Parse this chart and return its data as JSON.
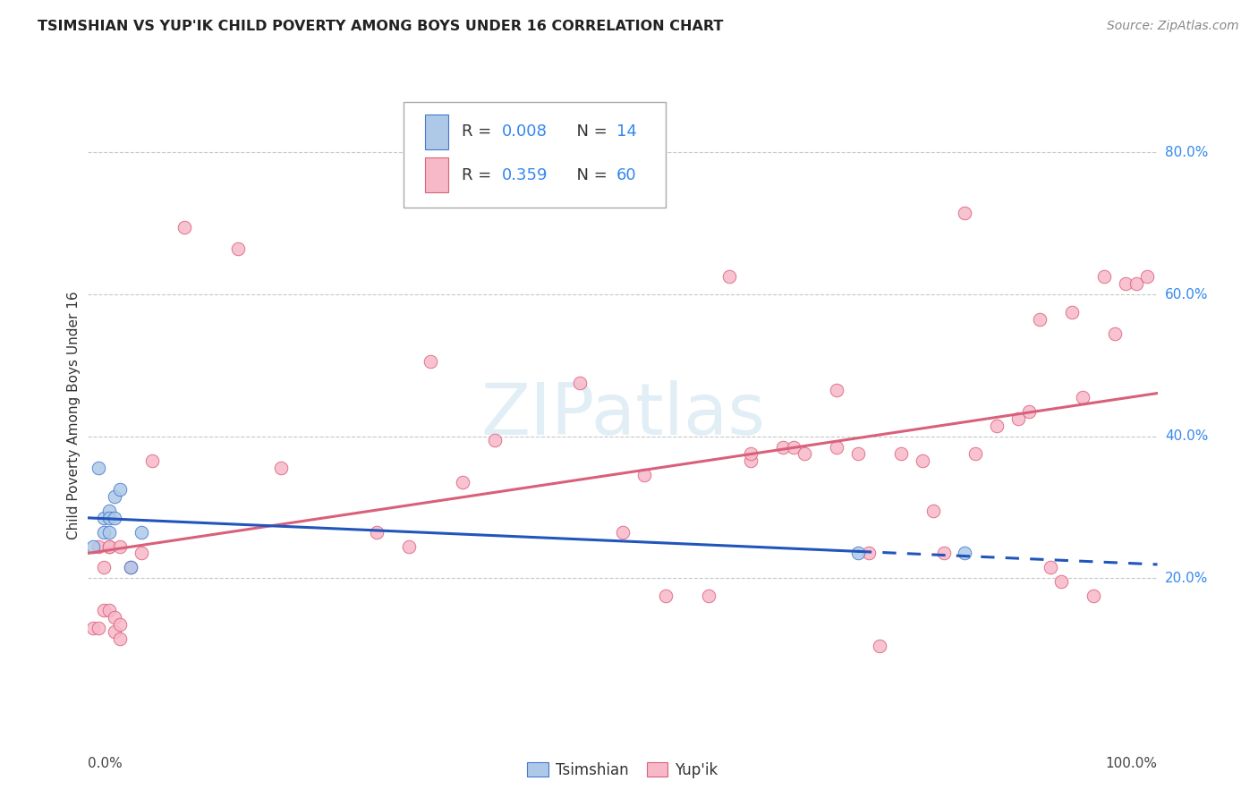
{
  "title": "TSIMSHIAN VS YUP'IK CHILD POVERTY AMONG BOYS UNDER 16 CORRELATION CHART",
  "source": "Source: ZipAtlas.com",
  "ylabel": "Child Poverty Among Boys Under 16",
  "xlim": [
    0.0,
    1.0
  ],
  "ylim": [
    -0.02,
    0.88
  ],
  "y_ticks": [
    0.2,
    0.4,
    0.6,
    0.8
  ],
  "y_tick_labels": [
    "20.0%",
    "40.0%",
    "60.0%",
    "80.0%"
  ],
  "grid_color": "#c8c8c8",
  "background_color": "#ffffff",
  "tsimshian_color": "#aec9e8",
  "tsimshian_edge_color": "#4477cc",
  "yupik_color": "#f7b8c8",
  "yupik_edge_color": "#d9607a",
  "tsimshian_line_color": "#2255bb",
  "yupik_line_color": "#d9607a",
  "marker_size": 110,
  "tsimshian_line_solid_end": 0.72,
  "tsimshian_x": [
    0.005,
    0.01,
    0.015,
    0.015,
    0.02,
    0.02,
    0.02,
    0.025,
    0.025,
    0.03,
    0.04,
    0.05,
    0.72,
    0.82
  ],
  "tsimshian_y": [
    0.245,
    0.355,
    0.285,
    0.265,
    0.295,
    0.285,
    0.265,
    0.315,
    0.285,
    0.325,
    0.215,
    0.265,
    0.235,
    0.235
  ],
  "yupik_x": [
    0.005,
    0.01,
    0.01,
    0.015,
    0.015,
    0.02,
    0.02,
    0.02,
    0.025,
    0.025,
    0.03,
    0.03,
    0.03,
    0.04,
    0.05,
    0.06,
    0.09,
    0.14,
    0.18,
    0.27,
    0.3,
    0.32,
    0.35,
    0.38,
    0.46,
    0.5,
    0.52,
    0.54,
    0.58,
    0.6,
    0.62,
    0.62,
    0.65,
    0.66,
    0.67,
    0.7,
    0.7,
    0.72,
    0.73,
    0.74,
    0.76,
    0.78,
    0.79,
    0.8,
    0.82,
    0.83,
    0.85,
    0.87,
    0.88,
    0.89,
    0.9,
    0.91,
    0.92,
    0.93,
    0.94,
    0.95,
    0.96,
    0.97,
    0.98,
    0.99
  ],
  "yupik_y": [
    0.13,
    0.245,
    0.13,
    0.215,
    0.155,
    0.245,
    0.245,
    0.155,
    0.145,
    0.125,
    0.245,
    0.135,
    0.115,
    0.215,
    0.235,
    0.365,
    0.695,
    0.665,
    0.355,
    0.265,
    0.245,
    0.505,
    0.335,
    0.395,
    0.475,
    0.265,
    0.345,
    0.175,
    0.175,
    0.625,
    0.365,
    0.375,
    0.385,
    0.385,
    0.375,
    0.465,
    0.385,
    0.375,
    0.235,
    0.105,
    0.375,
    0.365,
    0.295,
    0.235,
    0.715,
    0.375,
    0.415,
    0.425,
    0.435,
    0.565,
    0.215,
    0.195,
    0.575,
    0.455,
    0.175,
    0.625,
    0.545,
    0.615,
    0.615,
    0.625
  ]
}
